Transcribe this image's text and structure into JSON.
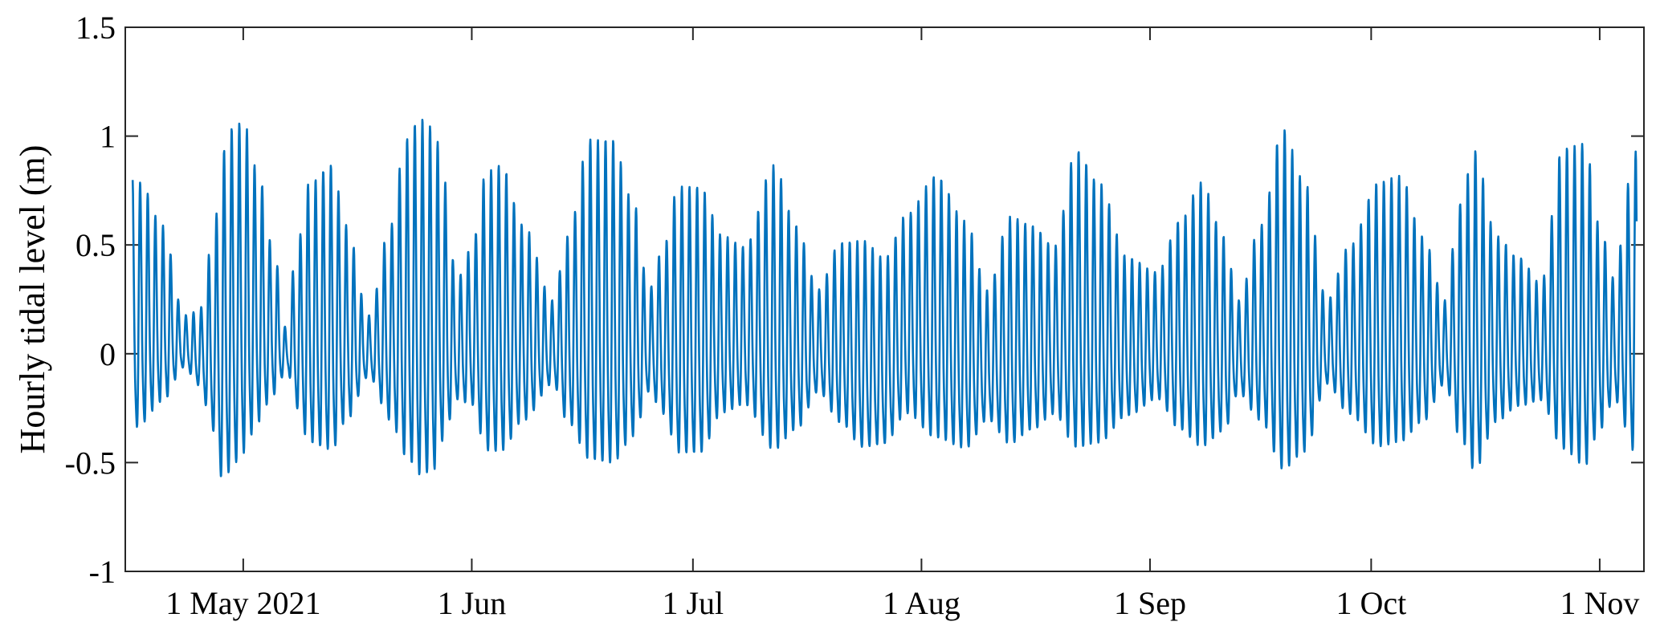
{
  "chart_data": {
    "type": "line",
    "xlabel": "",
    "ylabel": "Hourly tidal level (m)",
    "xlim": [
      "2021-04-15",
      "2021-11-07"
    ],
    "ylim": [
      -1,
      1.5
    ],
    "grid": false,
    "x_ticks": [
      {
        "date": "2021-05-01",
        "label": "1 May 2021"
      },
      {
        "date": "2021-06-01",
        "label": "1 Jun"
      },
      {
        "date": "2021-07-01",
        "label": "1 Jul"
      },
      {
        "date": "2021-08-01",
        "label": "1 Aug"
      },
      {
        "date": "2021-09-01",
        "label": "1 Sep"
      },
      {
        "date": "2021-10-01",
        "label": "1 Oct"
      },
      {
        "date": "2021-11-01",
        "label": "1 Nov"
      }
    ],
    "y_ticks": [
      {
        "value": -1,
        "label": "-1"
      },
      {
        "value": -0.5,
        "label": "-0.5"
      },
      {
        "value": 0,
        "label": "0"
      },
      {
        "value": 0.5,
        "label": "0.5"
      },
      {
        "value": 1,
        "label": "1"
      },
      {
        "value": 1.5,
        "label": "1.5"
      }
    ],
    "series": [
      {
        "color": "#0072BD",
        "x": [
          "2021-04-16",
          "2021-04-17",
          "2021-04-20",
          "2021-04-23",
          "2021-04-25",
          "2021-04-27",
          "2021-04-28",
          "2021-04-29",
          "2021-05-01",
          "2021-05-03",
          "2021-05-05",
          "2021-05-07",
          "2021-05-08",
          "2021-05-10",
          "2021-05-13",
          "2021-05-15",
          "2021-05-18",
          "2021-05-21",
          "2021-05-23",
          "2021-05-25",
          "2021-05-27",
          "2021-05-28",
          "2021-05-30",
          "2021-06-01",
          "2021-06-03",
          "2021-06-05",
          "2021-06-08",
          "2021-06-12",
          "2021-06-14",
          "2021-06-17",
          "2021-06-20",
          "2021-06-23",
          "2021-06-25",
          "2021-06-27",
          "2021-06-29",
          "2021-07-02",
          "2021-07-05",
          "2021-07-08",
          "2021-07-12",
          "2021-07-15",
          "2021-07-18",
          "2021-07-21",
          "2021-07-24",
          "2021-07-27",
          "2021-07-30",
          "2021-08-03",
          "2021-08-07",
          "2021-08-10",
          "2021-08-13",
          "2021-08-16",
          "2021-08-19",
          "2021-08-22",
          "2021-08-25",
          "2021-08-29",
          "2021-09-02",
          "2021-09-05",
          "2021-09-08",
          "2021-09-11",
          "2021-09-13",
          "2021-09-16",
          "2021-09-19",
          "2021-09-22",
          "2021-09-25",
          "2021-09-28",
          "2021-10-02",
          "2021-10-05",
          "2021-10-08",
          "2021-10-11",
          "2021-10-13",
          "2021-10-15",
          "2021-10-18",
          "2021-10-21",
          "2021-10-24",
          "2021-10-27",
          "2021-10-30",
          "2021-11-01",
          "2021-11-03",
          "2021-11-05",
          "2021-11-06"
        ],
        "high": [
          0.82,
          0.8,
          0.6,
          0.18,
          0.2,
          0.55,
          0.9,
          1.05,
          1.08,
          0.85,
          0.5,
          0.1,
          0.45,
          0.8,
          0.88,
          0.6,
          0.18,
          0.6,
          1.0,
          1.1,
          1.05,
          0.85,
          0.35,
          0.5,
          0.85,
          0.88,
          0.6,
          0.25,
          0.55,
          1.0,
          1.0,
          0.7,
          0.3,
          0.5,
          0.78,
          0.78,
          0.55,
          0.5,
          0.88,
          0.6,
          0.3,
          0.52,
          0.53,
          0.45,
          0.65,
          0.83,
          0.62,
          0.3,
          0.64,
          0.6,
          0.5,
          0.95,
          0.8,
          0.45,
          0.38,
          0.62,
          0.8,
          0.55,
          0.25,
          0.6,
          1.05,
          0.8,
          0.25,
          0.5,
          0.8,
          0.83,
          0.55,
          0.25,
          0.7,
          0.95,
          0.55,
          0.45,
          0.33,
          0.96,
          0.98,
          0.6,
          0.35,
          0.8,
          0.95
        ],
        "low": [
          -0.55,
          -0.5,
          -0.35,
          -0.1,
          -0.2,
          -0.5,
          -0.8,
          -0.8,
          -0.7,
          -0.5,
          -0.3,
          -0.1,
          -0.35,
          -0.6,
          -0.65,
          -0.45,
          -0.15,
          -0.45,
          -0.7,
          -0.82,
          -0.78,
          -0.6,
          -0.3,
          -0.35,
          -0.65,
          -0.66,
          -0.45,
          -0.2,
          -0.45,
          -0.72,
          -0.74,
          -0.55,
          -0.25,
          -0.4,
          -0.65,
          -0.65,
          -0.4,
          -0.35,
          -0.65,
          -0.5,
          -0.25,
          -0.45,
          -0.58,
          -0.55,
          -0.42,
          -0.58,
          -0.6,
          -0.4,
          -0.58,
          -0.5,
          -0.4,
          -0.65,
          -0.6,
          -0.4,
          -0.3,
          -0.5,
          -0.62,
          -0.5,
          -0.25,
          -0.45,
          -0.78,
          -0.65,
          -0.2,
          -0.4,
          -0.62,
          -0.6,
          -0.45,
          -0.2,
          -0.55,
          -0.77,
          -0.45,
          -0.35,
          -0.3,
          -0.66,
          -0.75,
          -0.5,
          -0.3,
          -0.55,
          -0.78
        ]
      }
    ]
  }
}
